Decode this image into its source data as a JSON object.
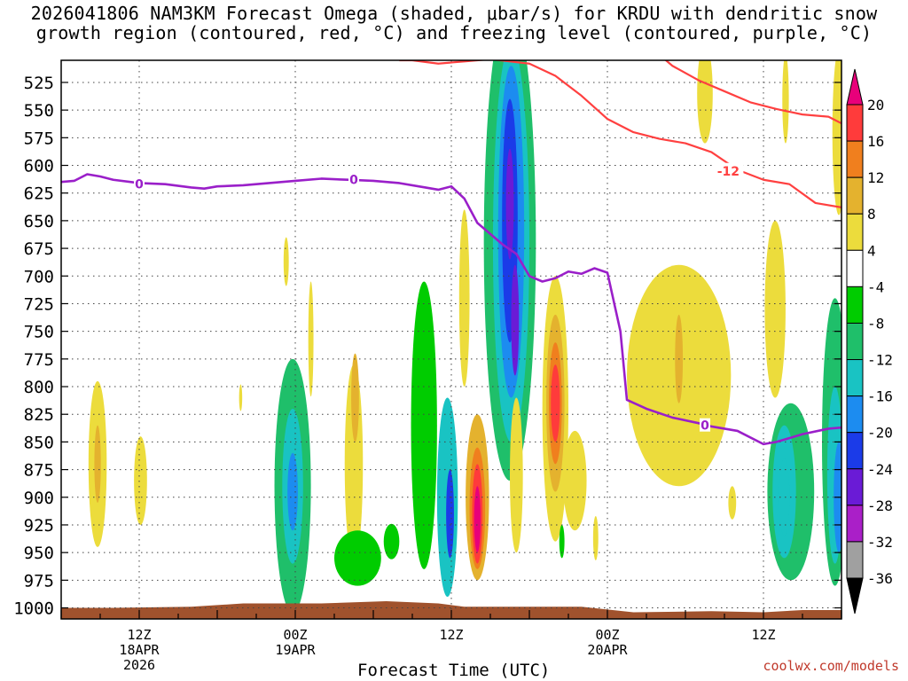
{
  "title": {
    "line1": "2026041806 NAM3KM Forecast Omega (shaded, μbar/s) for KRDU with dendritic snow",
    "line2": "growth region (contoured, red, °C) and freezing level (contoured, purple, °C)"
  },
  "credit": "coolwx.com/models",
  "chart_data": {
    "type": "heatmap",
    "title": "2026041806 NAM3KM Forecast Omega (shaded, μbar/s) for KRDU with dendritic snow growth region (contoured, red, °C) and freezing level (contoured, purple, °C)",
    "xlabel": "Forecast Time (UTC)",
    "ylabel": "",
    "y_unit": "hPa",
    "ylim": [
      1010,
      505
    ],
    "y_ticks": [
      525,
      550,
      575,
      600,
      625,
      650,
      675,
      700,
      725,
      750,
      775,
      800,
      825,
      850,
      875,
      900,
      925,
      950,
      975,
      1000
    ],
    "x_unit": "hours since 2026041806",
    "xlim": [
      0,
      60
    ],
    "x_ticks": [
      {
        "hour": 6,
        "lines": [
          "12Z",
          "18APR",
          "2026"
        ]
      },
      {
        "hour": 18,
        "lines": [
          "00Z",
          "19APR"
        ]
      },
      {
        "hour": 30,
        "lines": [
          "12Z"
        ]
      },
      {
        "hour": 42,
        "lines": [
          "00Z",
          "20APR"
        ]
      },
      {
        "hour": 54,
        "lines": [
          "12Z"
        ]
      }
    ],
    "grid": true,
    "colorbar": {
      "labels": [
        "20",
        "16",
        "12",
        "8",
        "4",
        "-4",
        "-8",
        "-12",
        "-16",
        "-20",
        "-24",
        "-28",
        "-32",
        "-36"
      ],
      "colors": [
        "#e8007a",
        "#ff3b3b",
        "#f07f1e",
        "#e4b22e",
        "#ecdc3c",
        "#ffffff",
        "#00cc00",
        "#1fbf6a",
        "#19c3c3",
        "#1c8cf0",
        "#1b3be8",
        "#6a1bd6",
        "#aa1fc8",
        "#a0a0a0"
      ]
    },
    "freezing_level": {
      "label": "0",
      "color": "#9a1fc9",
      "points": [
        [
          0,
          615
        ],
        [
          1,
          614
        ],
        [
          2,
          608
        ],
        [
          3,
          610
        ],
        [
          4,
          613
        ],
        [
          6,
          616
        ],
        [
          8,
          617
        ],
        [
          10,
          620
        ],
        [
          11,
          621
        ],
        [
          12,
          619
        ],
        [
          14,
          618
        ],
        [
          16,
          616
        ],
        [
          18,
          614
        ],
        [
          20,
          612
        ],
        [
          22,
          613
        ],
        [
          24,
          614
        ],
        [
          26,
          616
        ],
        [
          28,
          620
        ],
        [
          29,
          622
        ],
        [
          30,
          619
        ],
        [
          31,
          630
        ],
        [
          32,
          652
        ],
        [
          33,
          662
        ],
        [
          34,
          672
        ],
        [
          35,
          680
        ],
        [
          36,
          700
        ],
        [
          37,
          705
        ],
        [
          38,
          702
        ],
        [
          39,
          696
        ],
        [
          40,
          698
        ],
        [
          41,
          693
        ],
        [
          42,
          697
        ],
        [
          43,
          750
        ],
        [
          43.5,
          812
        ],
        [
          45,
          820
        ],
        [
          47,
          828
        ],
        [
          49,
          833
        ],
        [
          50,
          836
        ],
        [
          52,
          840
        ],
        [
          54,
          852
        ],
        [
          55,
          850
        ],
        [
          57,
          843
        ],
        [
          59,
          838
        ],
        [
          60,
          837
        ]
      ]
    },
    "dgz_contours": [
      {
        "label": "-12",
        "color": "#ff4040",
        "points": [
          [
            26,
            505
          ],
          [
            27,
            505
          ],
          [
            29,
            508
          ],
          [
            31,
            506
          ],
          [
            33,
            504
          ],
          [
            36,
            508
          ],
          [
            38,
            519
          ],
          [
            40,
            537
          ],
          [
            42,
            558
          ],
          [
            44,
            570
          ],
          [
            46,
            576
          ],
          [
            48,
            580
          ],
          [
            50,
            588
          ],
          [
            52,
            604
          ],
          [
            54,
            613
          ],
          [
            56,
            617
          ],
          [
            58,
            634
          ],
          [
            60,
            638
          ]
        ]
      },
      {
        "label": "",
        "color": "#ff4040",
        "points": [
          [
            46,
            500
          ],
          [
            47,
            510
          ],
          [
            49,
            523
          ],
          [
            51,
            533
          ],
          [
            53,
            543
          ],
          [
            55,
            549
          ],
          [
            57,
            554
          ],
          [
            59,
            556
          ],
          [
            60,
            562
          ]
        ]
      }
    ],
    "omega_cells": [
      {
        "t": 2.8,
        "p": 870,
        "rt": 0.7,
        "rp": 75,
        "value": 6
      },
      {
        "t": 2.8,
        "p": 870,
        "rt": 0.25,
        "rp": 35,
        "value": 10
      },
      {
        "t": 6.1,
        "p": 885,
        "rt": 0.5,
        "rp": 40,
        "value": 5
      },
      {
        "t": 17.8,
        "p": 890,
        "rt": 1.4,
        "rp": 115,
        "value": -8
      },
      {
        "t": 17.8,
        "p": 890,
        "rt": 0.8,
        "rp": 70,
        "value": -12
      },
      {
        "t": 17.8,
        "p": 895,
        "rt": 0.4,
        "rp": 35,
        "value": -16
      },
      {
        "t": 22.5,
        "p": 870,
        "rt": 0.7,
        "rp": 90,
        "value": 6
      },
      {
        "t": 22.6,
        "p": 810,
        "rt": 0.3,
        "rp": 40,
        "value": 9
      },
      {
        "t": 19.2,
        "p": 757,
        "rt": 0.2,
        "rp": 52,
        "value": 5
      },
      {
        "t": 17.3,
        "p": 687,
        "rt": 0.2,
        "rp": 22,
        "value": 5
      },
      {
        "t": 13.8,
        "p": 810,
        "rt": 0.12,
        "rp": 12,
        "value": 5
      },
      {
        "t": 22.8,
        "p": 955,
        "rt": 1.8,
        "rp": 25,
        "value": -6
      },
      {
        "t": 25.4,
        "p": 940,
        "rt": 0.6,
        "rp": 16,
        "value": -6
      },
      {
        "t": 27.9,
        "p": 835,
        "rt": 1.0,
        "rp": 130,
        "value": -6
      },
      {
        "t": 29.7,
        "p": 900,
        "rt": 0.8,
        "rp": 90,
        "value": -12
      },
      {
        "t": 29.9,
        "p": 915,
        "rt": 0.3,
        "rp": 40,
        "value": -20
      },
      {
        "t": 31.0,
        "p": 720,
        "rt": 0.4,
        "rp": 80,
        "value": 6
      },
      {
        "t": 32.0,
        "p": 900,
        "rt": 0.9,
        "rp": 75,
        "value": 9
      },
      {
        "t": 32.0,
        "p": 910,
        "rt": 0.6,
        "rp": 55,
        "value": 13
      },
      {
        "t": 32.0,
        "p": 915,
        "rt": 0.4,
        "rp": 45,
        "value": 18
      },
      {
        "t": 32.0,
        "p": 920,
        "rt": 0.25,
        "rp": 30,
        "value": 22
      },
      {
        "t": 33.0,
        "p": 670,
        "rt": 0.4,
        "rp": 25,
        "value": 6
      },
      {
        "t": 34.5,
        "p": 670,
        "rt": 2.0,
        "rp": 215,
        "value": -8
      },
      {
        "t": 34.6,
        "p": 670,
        "rt": 1.4,
        "rp": 180,
        "value": -12
      },
      {
        "t": 34.6,
        "p": 660,
        "rt": 1.0,
        "rp": 150,
        "value": -16
      },
      {
        "t": 34.5,
        "p": 650,
        "rt": 0.6,
        "rp": 110,
        "value": -20
      },
      {
        "t": 34.5,
        "p": 635,
        "rt": 0.3,
        "rp": 50,
        "value": -26
      },
      {
        "t": 34.9,
        "p": 740,
        "rt": 0.3,
        "rp": 50,
        "value": -24
      },
      {
        "t": 35.0,
        "p": 880,
        "rt": 0.5,
        "rp": 70,
        "value": 6
      },
      {
        "t": 38.0,
        "p": 820,
        "rt": 1.0,
        "rp": 120,
        "value": 6
      },
      {
        "t": 38.0,
        "p": 815,
        "rt": 0.7,
        "rp": 80,
        "value": 9
      },
      {
        "t": 38.0,
        "p": 815,
        "rt": 0.5,
        "rp": 55,
        "value": 13
      },
      {
        "t": 38.0,
        "p": 815,
        "rt": 0.35,
        "rp": 35,
        "value": 17
      },
      {
        "t": 39.5,
        "p": 885,
        "rt": 0.9,
        "rp": 45,
        "value": 5
      },
      {
        "t": 38.5,
        "p": 940,
        "rt": 0.2,
        "rp": 15,
        "value": -6
      },
      {
        "t": 41.1,
        "p": 937,
        "rt": 0.2,
        "rp": 20,
        "value": 5
      },
      {
        "t": 47.5,
        "p": 790,
        "rt": 4.0,
        "rp": 100,
        "value": 6
      },
      {
        "t": 47.5,
        "p": 775,
        "rt": 0.3,
        "rp": 40,
        "value": 10
      },
      {
        "t": 49.5,
        "p": 535,
        "rt": 0.6,
        "rp": 45,
        "value": 5
      },
      {
        "t": 51.6,
        "p": 905,
        "rt": 0.3,
        "rp": 15,
        "value": 5
      },
      {
        "t": 54.9,
        "p": 730,
        "rt": 0.8,
        "rp": 80,
        "value": 6
      },
      {
        "t": 55.7,
        "p": 540,
        "rt": 0.25,
        "rp": 40,
        "value": 5
      },
      {
        "t": 56.1,
        "p": 895,
        "rt": 1.8,
        "rp": 80,
        "value": -8
      },
      {
        "t": 55.6,
        "p": 895,
        "rt": 0.9,
        "rp": 60,
        "value": -12
      },
      {
        "t": 55.6,
        "p": 900,
        "rt": 0.4,
        "rp": 35,
        "value": -14
      },
      {
        "t": 59.5,
        "p": 850,
        "rt": 1.0,
        "rp": 130,
        "value": -8
      },
      {
        "t": 59.5,
        "p": 880,
        "rt": 0.6,
        "rp": 80,
        "value": -12
      },
      {
        "t": 59.8,
        "p": 900,
        "rt": 0.4,
        "rp": 50,
        "value": -18
      },
      {
        "t": 59.8,
        "p": 570,
        "rt": 0.5,
        "rp": 75,
        "value": 6
      }
    ],
    "terrain": {
      "color": "#a0522d",
      "points": [
        [
          0,
          1000
        ],
        [
          4,
          1000
        ],
        [
          10,
          999
        ],
        [
          14,
          996
        ],
        [
          20,
          996
        ],
        [
          25,
          994
        ],
        [
          29,
          996
        ],
        [
          31,
          999
        ],
        [
          40,
          999
        ],
        [
          44,
          1004
        ],
        [
          50,
          1003
        ],
        [
          54,
          1004
        ],
        [
          57,
          1002
        ],
        [
          60,
          1002
        ]
      ]
    }
  }
}
